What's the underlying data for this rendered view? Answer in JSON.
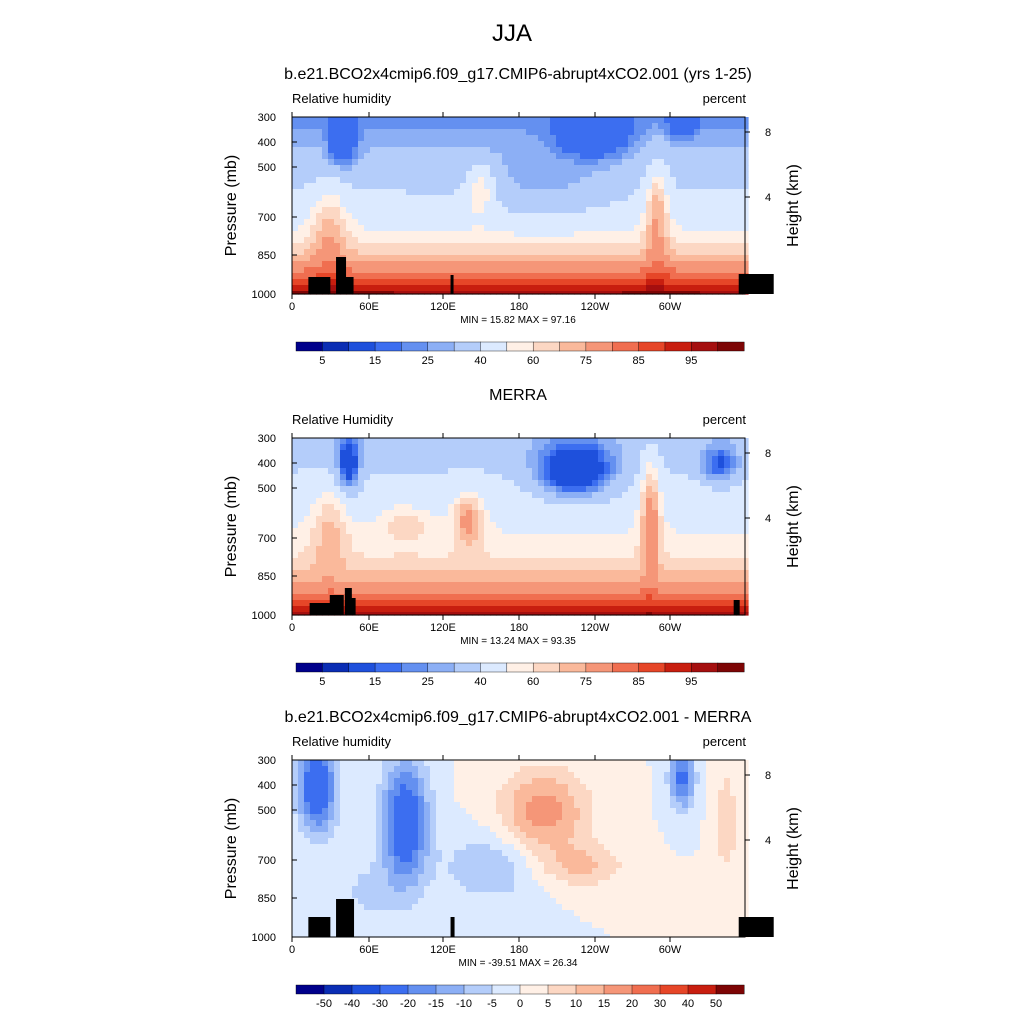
{
  "figure": {
    "title": "JJA"
  },
  "colors": {
    "full_field": [
      "#00008b",
      "#0a2db4",
      "#1e50dc",
      "#3c6ef0",
      "#6490f0",
      "#8caff5",
      "#b4cdfa",
      "#dceaff",
      "#fff0e6",
      "#fcd7c3",
      "#fab99b",
      "#f59678",
      "#f06e50",
      "#e64628",
      "#c81e0f",
      "#a50f0f",
      "#7d0505"
    ],
    "difference": [
      "#00008b",
      "#0a2db4",
      "#1e50dc",
      "#3c6ef0",
      "#6490f0",
      "#8caff5",
      "#b4cdfa",
      "#dceaff",
      "#fff0e6",
      "#fcd7c3",
      "#fab99b",
      "#f59678",
      "#f06e50",
      "#e64628",
      "#c81e0f",
      "#7d0505"
    ],
    "topography": "#000000"
  },
  "chart_data": [
    {
      "type": "heatmap",
      "title": "b.e21.BCO2x4cmip6.f09_g17.CMIP6-abrupt4xCO2.001 (yrs 1-25)",
      "left_label": "Relative humidity",
      "right_label": "percent",
      "ylabel": "Pressure (mb)",
      "y2label": "Height (km)",
      "xticks": [
        "0",
        "60E",
        "120E",
        "180",
        "120W",
        "60W"
      ],
      "yticks": [
        "300",
        "400",
        "500",
        "700",
        "850",
        "1000"
      ],
      "y2ticks": [
        "8",
        "4"
      ],
      "stats": "MIN =  15.82  MAX =  97.16",
      "colorbar_labels": [
        "5",
        "15",
        "25",
        "40",
        "60",
        "75",
        "85",
        "95"
      ],
      "min": 15.82,
      "max": 97.16
    },
    {
      "type": "heatmap",
      "title": "MERRA",
      "left_label": "Relative Humidity",
      "right_label": "percent",
      "ylabel": "Pressure (mb)",
      "y2label": "Height (km)",
      "xticks": [
        "0",
        "60E",
        "120E",
        "180",
        "120W",
        "60W"
      ],
      "yticks": [
        "300",
        "400",
        "500",
        "700",
        "850",
        "1000"
      ],
      "y2ticks": [
        "8",
        "4"
      ],
      "stats": "MIN =  13.24  MAX =  93.35",
      "colorbar_labels": [
        "5",
        "15",
        "25",
        "40",
        "60",
        "75",
        "85",
        "95"
      ],
      "min": 13.24,
      "max": 93.35
    },
    {
      "type": "heatmap",
      "title": "b.e21.BCO2x4cmip6.f09_g17.CMIP6-abrupt4xCO2.001 - MERRA",
      "left_label": "Relative humidity",
      "right_label": "percent",
      "ylabel": "Pressure (mb)",
      "y2label": "Height (km)",
      "xticks": [
        "0",
        "60E",
        "120E",
        "180",
        "120W",
        "60W"
      ],
      "yticks": [
        "300",
        "400",
        "500",
        "700",
        "850",
        "1000"
      ],
      "y2ticks": [
        "8",
        "4"
      ],
      "stats": "MIN = -39.51  MAX =  26.34",
      "colorbar_labels": [
        "-50",
        "-40",
        "-30",
        "-20",
        "-15",
        "-10",
        "-5",
        "0",
        "5",
        "10",
        "15",
        "20",
        "30",
        "40",
        "50"
      ],
      "min": -39.51,
      "max": 26.34
    }
  ]
}
